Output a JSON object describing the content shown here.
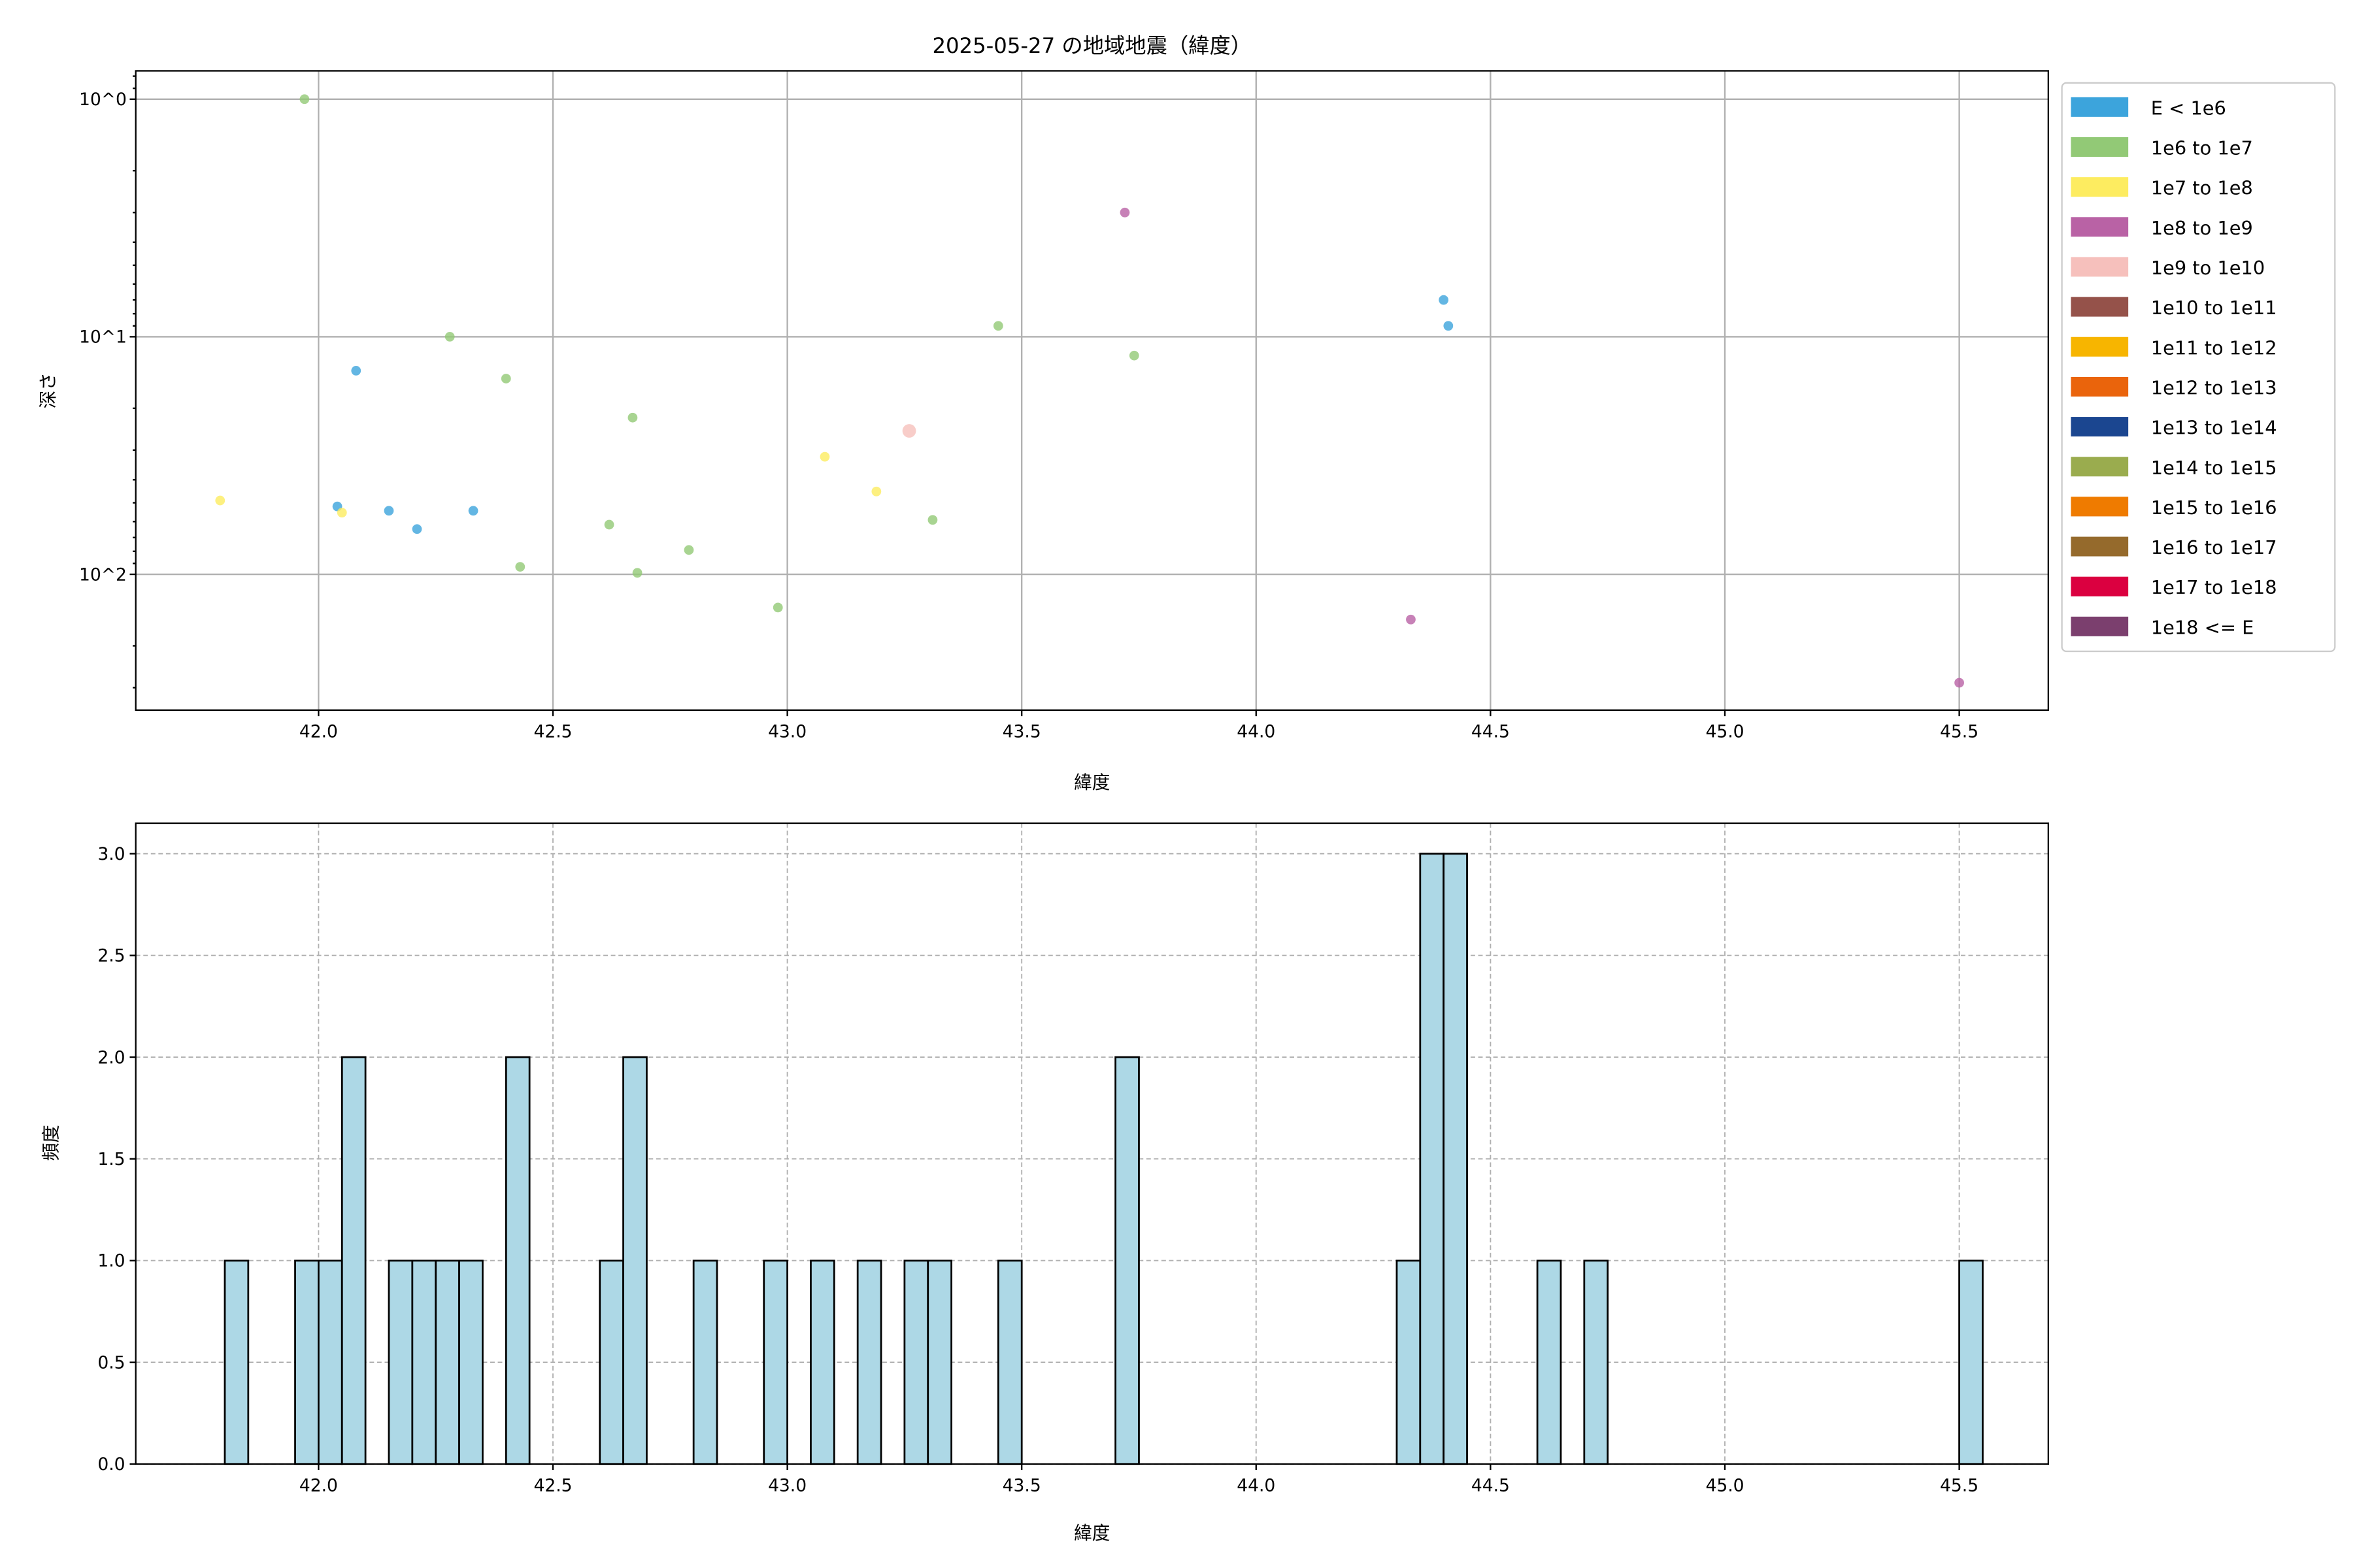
{
  "chart_data": [
    {
      "type": "scatter",
      "title": "2025-05-27 の地域地震（緯度）",
      "xlabel": "緯度",
      "ylabel": "深さ",
      "xlim": [
        41.61,
        45.69
      ],
      "ylim": [
        373,
        0.76
      ],
      "yscale": "log",
      "y_inverted": true,
      "grid": true,
      "xticks": [
        42.0,
        42.5,
        43.0,
        43.5,
        44.0,
        44.5,
        45.0,
        45.5
      ],
      "xtick_labels": [
        "42.0",
        "42.5",
        "43.0",
        "43.5",
        "44.0",
        "44.5",
        "45.0",
        "45.5"
      ],
      "yticks": [
        1,
        10,
        100
      ],
      "ytick_labels": [
        "10^0",
        "10^1",
        "10^2"
      ],
      "legend_placement": "outside-right",
      "legend": [
        {
          "label": "E < 1e6",
          "color": "#3ca4dc"
        },
        {
          "label": "1e6 to 1e7",
          "color": "#92c976"
        },
        {
          "label": "1e7 to 1e8",
          "color": "#fdec60"
        },
        {
          "label": "1e8 to 1e9",
          "color": "#b962a5"
        },
        {
          "label": "1e9 to 1e10",
          "color": "#f6c0bc"
        },
        {
          "label": "1e10 to 1e11",
          "color": "#95524a"
        },
        {
          "label": "1e11 to 1e12",
          "color": "#f7b500"
        },
        {
          "label": "1e12 to 1e13",
          "color": "#ea640c"
        },
        {
          "label": "1e13 to 1e14",
          "color": "#1b4690"
        },
        {
          "label": "1e14 to 1e15",
          "color": "#9aac4e"
        },
        {
          "label": "1e15 to 1e16",
          "color": "#ef7b00"
        },
        {
          "label": "1e16 to 1e17",
          "color": "#956a2c"
        },
        {
          "label": "1e17 to 1e18",
          "color": "#db0040"
        },
        {
          "label": "1e18 <= E",
          "color": "#7b3f6e"
        }
      ],
      "points": [
        {
          "lat": 41.97,
          "depth": 1.0,
          "class": 1
        },
        {
          "lat": 42.28,
          "depth": 10,
          "class": 1
        },
        {
          "lat": 42.08,
          "depth": 13.9,
          "class": 0
        },
        {
          "lat": 42.4,
          "depth": 15,
          "class": 1
        },
        {
          "lat": 42.67,
          "depth": 21.9,
          "class": 1
        },
        {
          "lat": 41.79,
          "depth": 48.9,
          "class": 2
        },
        {
          "lat": 42.04,
          "depth": 51.8,
          "class": 0
        },
        {
          "lat": 42.05,
          "depth": 55,
          "class": 2
        },
        {
          "lat": 42.15,
          "depth": 54,
          "class": 0
        },
        {
          "lat": 42.21,
          "depth": 64.5,
          "class": 0
        },
        {
          "lat": 42.33,
          "depth": 54,
          "class": 0
        },
        {
          "lat": 42.43,
          "depth": 93,
          "class": 1
        },
        {
          "lat": 42.62,
          "depth": 61.8,
          "class": 1
        },
        {
          "lat": 42.68,
          "depth": 98.6,
          "class": 1
        },
        {
          "lat": 42.79,
          "depth": 79,
          "class": 1
        },
        {
          "lat": 42.98,
          "depth": 138,
          "class": 1
        },
        {
          "lat": 43.08,
          "depth": 32,
          "class": 2
        },
        {
          "lat": 43.19,
          "depth": 44.8,
          "class": 2
        },
        {
          "lat": 43.26,
          "depth": 24.9,
          "class": 4
        },
        {
          "lat": 43.31,
          "depth": 59,
          "class": 1
        },
        {
          "lat": 43.45,
          "depth": 9.0,
          "class": 1
        },
        {
          "lat": 43.72,
          "depth": 3.0,
          "class": 3
        },
        {
          "lat": 43.74,
          "depth": 12,
          "class": 1
        },
        {
          "lat": 44.4,
          "depth": 7.0,
          "class": 0
        },
        {
          "lat": 44.41,
          "depth": 9.0,
          "class": 0
        },
        {
          "lat": 44.33,
          "depth": 155,
          "class": 3
        },
        {
          "lat": 45.5,
          "depth": 286,
          "class": 3
        }
      ]
    },
    {
      "type": "bar",
      "subtype": "histogram",
      "xlabel": "緯度",
      "ylabel": "頻度",
      "xlim": [
        41.61,
        45.69
      ],
      "ylim": [
        0,
        3.15
      ],
      "grid": true,
      "bar_color": "#add8e6",
      "edge_color": "#000000",
      "bin_width": 0.05,
      "xticks": [
        42.0,
        42.5,
        43.0,
        43.5,
        44.0,
        44.5,
        45.0,
        45.5
      ],
      "xtick_labels": [
        "42.0",
        "42.5",
        "43.0",
        "43.5",
        "44.0",
        "44.5",
        "45.0",
        "45.5"
      ],
      "yticks": [
        0,
        0.5,
        1,
        1.5,
        2,
        2.5,
        3
      ],
      "ytick_labels": [
        "0.0",
        "0.5",
        "1.0",
        "1.5",
        "2.0",
        "2.5",
        "3.0"
      ],
      "bins": [
        41.8,
        41.95,
        42.0,
        42.05,
        42.15,
        42.2,
        42.25,
        42.3,
        42.4,
        42.6,
        42.65,
        42.8,
        42.95,
        43.05,
        43.15,
        43.25,
        43.3,
        43.45,
        43.7,
        44.3,
        44.35,
        44.4,
        44.6,
        44.7,
        45.5
      ],
      "counts": [
        1,
        1,
        1,
        2,
        1,
        1,
        1,
        1,
        2,
        1,
        2,
        1,
        1,
        1,
        1,
        1,
        1,
        1,
        2,
        1,
        3,
        3,
        1,
        1,
        1
      ]
    }
  ]
}
